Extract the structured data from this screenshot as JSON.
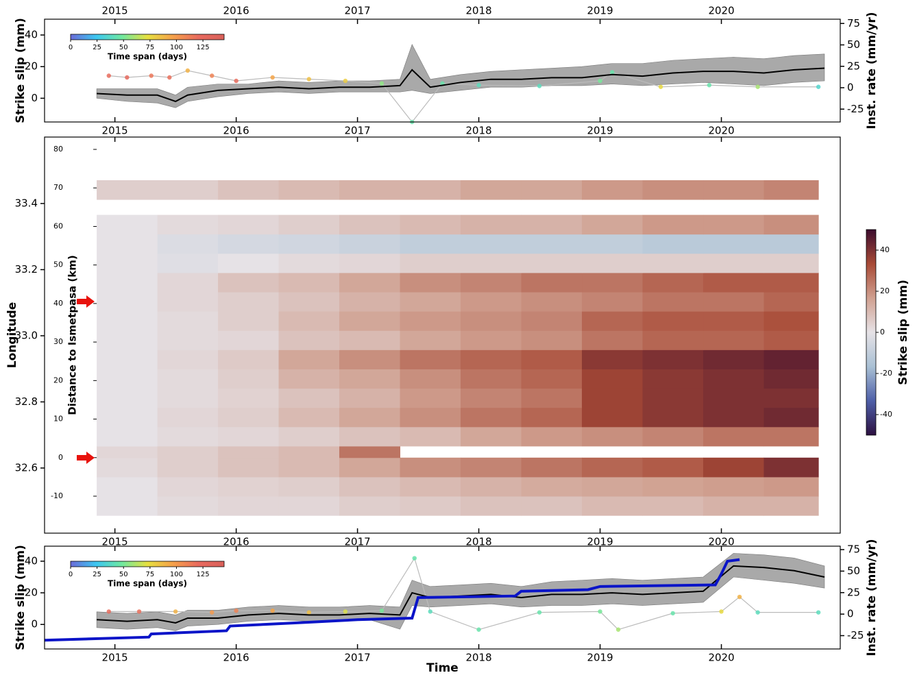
{
  "chart_data": [
    {
      "type": "line",
      "ylabel": "Strike slip (mm)",
      "y2label": "Inst. rate (mm/yr)",
      "top_axis": true,
      "xlim": [
        2014.42,
        2020.98
      ],
      "xticks": [
        2015,
        2016,
        2017,
        2018,
        2019,
        2020
      ],
      "ylim": [
        -15,
        50
      ],
      "yticks": [
        0,
        20,
        40
      ],
      "y2lim": [
        -40,
        80
      ],
      "y2ticks": [
        -25,
        0,
        25,
        50,
        75
      ],
      "x": [
        2014.85,
        2015.1,
        2015.35,
        2015.5,
        2015.6,
        2015.85,
        2016.1,
        2016.35,
        2016.6,
        2016.85,
        2017.1,
        2017.35,
        2017.45,
        2017.6,
        2017.85,
        2018.1,
        2018.35,
        2018.6,
        2018.85,
        2019.1,
        2019.35,
        2019.6,
        2019.85,
        2020.1,
        2020.35,
        2020.6,
        2020.85
      ],
      "mean": {
        "color": "#000000",
        "values": [
          3,
          2,
          2,
          -2,
          2,
          5,
          6,
          7,
          6,
          7,
          7,
          8,
          18,
          7,
          10,
          12,
          12,
          13,
          13,
          15,
          14,
          16,
          17,
          17,
          16,
          18,
          19
        ]
      },
      "band": {
        "color": "#a9a9a9",
        "upper": [
          6,
          6,
          6,
          2,
          7,
          9,
          9,
          11,
          10,
          11,
          11,
          12,
          34,
          12,
          15,
          17,
          18,
          19,
          20,
          22,
          22,
          24,
          25,
          26,
          25,
          27,
          28
        ],
        "lower": [
          0,
          -2,
          -3,
          -6,
          -2,
          1,
          3,
          4,
          3,
          4,
          4,
          4,
          5,
          3,
          5,
          7,
          7,
          8,
          8,
          9,
          8,
          9,
          10,
          9,
          8,
          10,
          11
        ]
      },
      "rate": {
        "axis": "y2",
        "color": "#bbbbbb",
        "x": [
          2014.95,
          2015.1,
          2015.3,
          2015.45,
          2015.6,
          2015.8,
          2016.0,
          2016.3,
          2016.6,
          2016.9,
          2017.2,
          2017.45,
          2017.7,
          2018.0,
          2018.5,
          2019.0,
          2019.1,
          2019.5,
          2019.9,
          2020.3,
          2020.8
        ],
        "values": [
          14,
          12,
          14,
          12,
          20,
          14,
          8,
          12,
          10,
          8,
          5,
          -40,
          5,
          3,
          2,
          8,
          18,
          1,
          3,
          1,
          1
        ],
        "spans": [
          120,
          125,
          115,
          118,
          90,
          110,
          120,
          95,
          85,
          80,
          55,
          45,
          45,
          40,
          40,
          50,
          45,
          75,
          45,
          60,
          35
        ]
      },
      "colorbar": {
        "label": "Time span (days)",
        "clim": [
          0,
          145
        ],
        "ticks": [
          0,
          25,
          50,
          75,
          100,
          125
        ],
        "colors": [
          "#6b6bd8",
          "#3cc6f0",
          "#6fe8a0",
          "#e6e040",
          "#f5a04a",
          "#e86a5e",
          "#d9605a"
        ]
      }
    },
    {
      "type": "heatmap",
      "ylabel": "Longitude",
      "xlim": [
        2014.42,
        2020.98
      ],
      "xticks": [
        2015,
        2016,
        2017,
        2018,
        2019,
        2020
      ],
      "ylim": [
        32.403,
        33.601
      ],
      "yticks": [
        32.6,
        32.8,
        {
          "value": 33,
          "label": "33.0"
        },
        33.2,
        33.4
      ],
      "inner_axis": {
        "label": "Distance to Ismetpasa (km)",
        "lim": [
          -19.6,
          83.2
        ],
        "ticks": [
          -10,
          0,
          10,
          20,
          30,
          40,
          50,
          60,
          70,
          80
        ]
      },
      "x_edges": [
        2014.85,
        2015.35,
        2015.85,
        2016.35,
        2016.85,
        2017.35,
        2017.85,
        2018.35,
        2018.85,
        2019.35,
        2019.85,
        2020.35,
        2020.8
      ],
      "y_edges": [
        -15,
        -10,
        -5,
        0,
        3,
        8,
        13,
        18,
        23,
        28,
        33,
        38,
        43,
        48,
        53,
        58,
        63,
        67,
        72
      ],
      "values": [
        [
          0,
          2,
          3,
          3,
          5,
          6,
          8,
          8,
          10,
          10,
          12,
          12
        ],
        [
          0,
          3,
          4,
          5,
          8,
          10,
          12,
          14,
          15,
          16,
          17,
          18
        ],
        [
          2,
          5,
          8,
          10,
          15,
          20,
          22,
          25,
          28,
          30,
          35,
          40
        ],
        [
          3,
          5,
          8,
          10,
          25,
          null,
          null,
          null,
          null,
          null,
          null,
          null
        ],
        [
          0,
          2,
          3,
          5,
          8,
          10,
          15,
          18,
          20,
          22,
          25,
          25
        ],
        [
          0,
          3,
          5,
          10,
          15,
          20,
          25,
          28,
          35,
          38,
          40,
          42
        ],
        [
          0,
          2,
          4,
          8,
          12,
          18,
          22,
          25,
          35,
          38,
          40,
          40
        ],
        [
          0,
          2,
          5,
          12,
          15,
          20,
          25,
          28,
          35,
          38,
          40,
          42
        ],
        [
          0,
          3,
          6,
          15,
          20,
          25,
          28,
          30,
          38,
          40,
          42,
          44
        ],
        [
          0,
          2,
          3,
          8,
          10,
          15,
          18,
          20,
          25,
          28,
          28,
          30
        ],
        [
          0,
          2,
          5,
          10,
          15,
          18,
          20,
          22,
          28,
          30,
          30,
          32
        ],
        [
          0,
          3,
          5,
          8,
          12,
          15,
          18,
          20,
          22,
          25,
          25,
          28
        ],
        [
          0,
          3,
          8,
          10,
          15,
          20,
          22,
          25,
          25,
          28,
          30,
          30
        ],
        [
          0,
          -2,
          0,
          2,
          3,
          5,
          5,
          5,
          5,
          5,
          5,
          5
        ],
        [
          0,
          -3,
          -5,
          -6,
          -8,
          -10,
          -10,
          -10,
          -10,
          -12,
          -12,
          -12
        ],
        [
          0,
          2,
          3,
          5,
          8,
          10,
          12,
          12,
          15,
          18,
          18,
          20
        ],
        [
          null,
          null,
          null,
          null,
          null,
          null,
          null,
          null,
          null,
          null,
          null,
          null
        ],
        [
          5,
          5,
          8,
          10,
          12,
          12,
          15,
          15,
          18,
          20,
          20,
          22
        ]
      ],
      "colorbar": {
        "label": "Strike slip (mm)",
        "clim": [
          -50,
          50
        ],
        "ticks": [
          -40,
          -20,
          0,
          20,
          40
        ],
        "colors": [
          "#2c1040",
          "#4e5fa8",
          "#a9c0d4",
          "#e6e2e6",
          "#d0a090",
          "#a84a36",
          "#3c0c2e"
        ]
      }
    },
    {
      "type": "line",
      "ylabel": "Strike slip (mm)",
      "y2label": "Inst. rate (mm/yr)",
      "xlabel": "Time",
      "xlim": [
        2014.42,
        2020.98
      ],
      "xticks": [
        2015,
        2016,
        2017,
        2018,
        2019,
        2020
      ],
      "ylim": [
        -15.5,
        49.5
      ],
      "yticks": [
        0,
        20,
        40
      ],
      "y2lim": [
        -40.5,
        79
      ],
      "y2ticks": [
        -25,
        0,
        25,
        50,
        75
      ],
      "x": [
        2014.85,
        2015.1,
        2015.35,
        2015.5,
        2015.6,
        2015.85,
        2016.1,
        2016.35,
        2016.6,
        2016.85,
        2017.1,
        2017.35,
        2017.45,
        2017.6,
        2017.85,
        2018.1,
        2018.35,
        2018.6,
        2018.85,
        2019.1,
        2019.35,
        2019.6,
        2019.85,
        2020.1,
        2020.35,
        2020.6,
        2020.85
      ],
      "mean": {
        "color": "#000000",
        "values": [
          3,
          2,
          3,
          1,
          4,
          4,
          6,
          7,
          6,
          6,
          7,
          6,
          20,
          17,
          18,
          19,
          17,
          19,
          19,
          20,
          19,
          20,
          21,
          37,
          36,
          34,
          30
        ]
      },
      "band": {
        "color": "#a9a9a9",
        "upper": [
          8,
          7,
          8,
          6,
          9,
          9,
          11,
          12,
          11,
          11,
          12,
          11,
          28,
          24,
          25,
          26,
          24,
          27,
          28,
          29,
          28,
          29,
          30,
          45,
          44,
          42,
          37
        ],
        "lower": [
          -2,
          -3,
          -2,
          -4,
          -1,
          0,
          2,
          3,
          2,
          2,
          3,
          -3,
          12,
          11,
          12,
          13,
          11,
          12,
          12,
          13,
          12,
          13,
          14,
          30,
          28,
          26,
          23
        ]
      },
      "creep": {
        "color": "#0a14c8",
        "x": [
          2014.42,
          2015.28,
          2015.3,
          2015.92,
          2015.95,
          2016.5,
          2017.0,
          2017.45,
          2017.5,
          2018.3,
          2018.35,
          2018.9,
          2019.0,
          2019.95,
          2020.0,
          2020.05,
          2020.15
        ],
        "values": [
          -10,
          -8,
          -6,
          -4,
          -1,
          1,
          3,
          4,
          17,
          18,
          21,
          22,
          24,
          25,
          32,
          40,
          41
        ]
      },
      "rate": {
        "axis": "y2",
        "color": "#bbbbbb",
        "x": [
          2014.95,
          2015.2,
          2015.5,
          2015.8,
          2016.0,
          2016.3,
          2016.6,
          2016.9,
          2017.2,
          2017.47,
          2017.6,
          2018.0,
          2018.5,
          2019.0,
          2019.15,
          2019.6,
          2020.0,
          2020.15,
          2020.3,
          2020.8
        ],
        "values": [
          3,
          3,
          3,
          2,
          4,
          4,
          2,
          3,
          4,
          65,
          3,
          -18,
          2,
          3,
          -18,
          1,
          3,
          20,
          2,
          2
        ],
        "spans": [
          120,
          118,
          90,
          100,
          110,
          95,
          85,
          70,
          50,
          45,
          40,
          45,
          45,
          50,
          60,
          45,
          75,
          90,
          40,
          40
        ]
      },
      "colorbar": {
        "label": "Time span (days)",
        "clim": [
          0,
          145
        ],
        "ticks": [
          0,
          25,
          50,
          75,
          100,
          125
        ],
        "colors": [
          "#6b6bd8",
          "#3cc6f0",
          "#6fe8a0",
          "#e6e040",
          "#f5a04a",
          "#e86a5e",
          "#d9605a"
        ]
      }
    }
  ]
}
